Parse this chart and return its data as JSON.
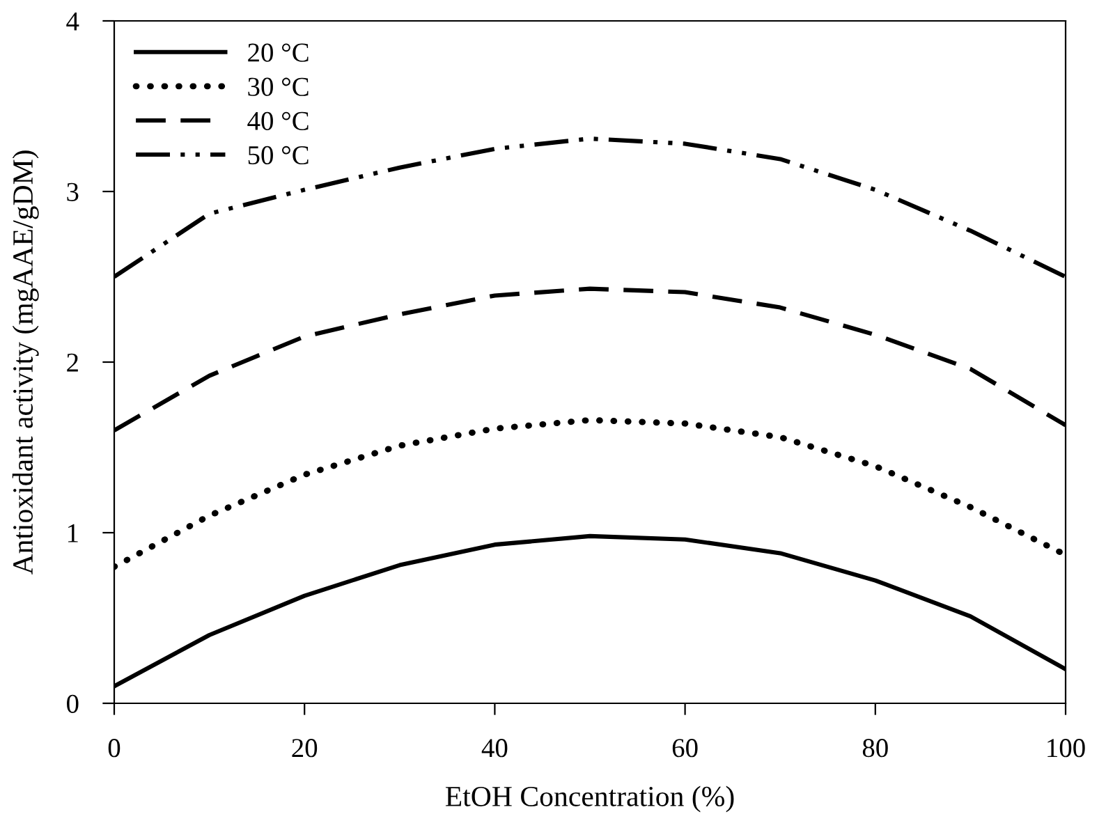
{
  "chart_data": {
    "type": "line",
    "xlabel": "EtOH Concentration (%)",
    "ylabel": "Antioxidant activity (mgAAE/gDM)",
    "x": [
      0,
      10,
      20,
      30,
      40,
      50,
      60,
      70,
      80,
      90,
      100
    ],
    "xlim": [
      0,
      100
    ],
    "xticks": [
      0,
      20,
      40,
      60,
      80,
      100
    ],
    "ylim": [
      0,
      4
    ],
    "yticks": [
      0,
      1,
      2,
      3,
      4
    ],
    "grid": false,
    "legend": "top left",
    "marker": "none",
    "series": [
      {
        "name": "20 °C",
        "color": "#000000",
        "line_style": "solid",
        "values": [
          0.1,
          0.4,
          0.63,
          0.81,
          0.93,
          0.98,
          0.96,
          0.88,
          0.72,
          0.51,
          0.2
        ]
      },
      {
        "name": "30 °C",
        "color": "#000000",
        "line_style": "dotted",
        "values": [
          0.8,
          1.1,
          1.34,
          1.51,
          1.61,
          1.66,
          1.64,
          1.56,
          1.39,
          1.15,
          0.87
        ]
      },
      {
        "name": "40 °C",
        "color": "#000000",
        "line_style": "dashed",
        "values": [
          1.6,
          1.92,
          2.15,
          2.28,
          2.39,
          2.43,
          2.41,
          2.32,
          2.16,
          1.96,
          1.63
        ]
      },
      {
        "name": "50 °C",
        "color": "#000000",
        "line_style": "dashdotdot",
        "values": [
          2.5,
          2.87,
          3.01,
          3.14,
          3.25,
          3.31,
          3.28,
          3.19,
          3.01,
          2.77,
          2.5
        ]
      }
    ]
  }
}
